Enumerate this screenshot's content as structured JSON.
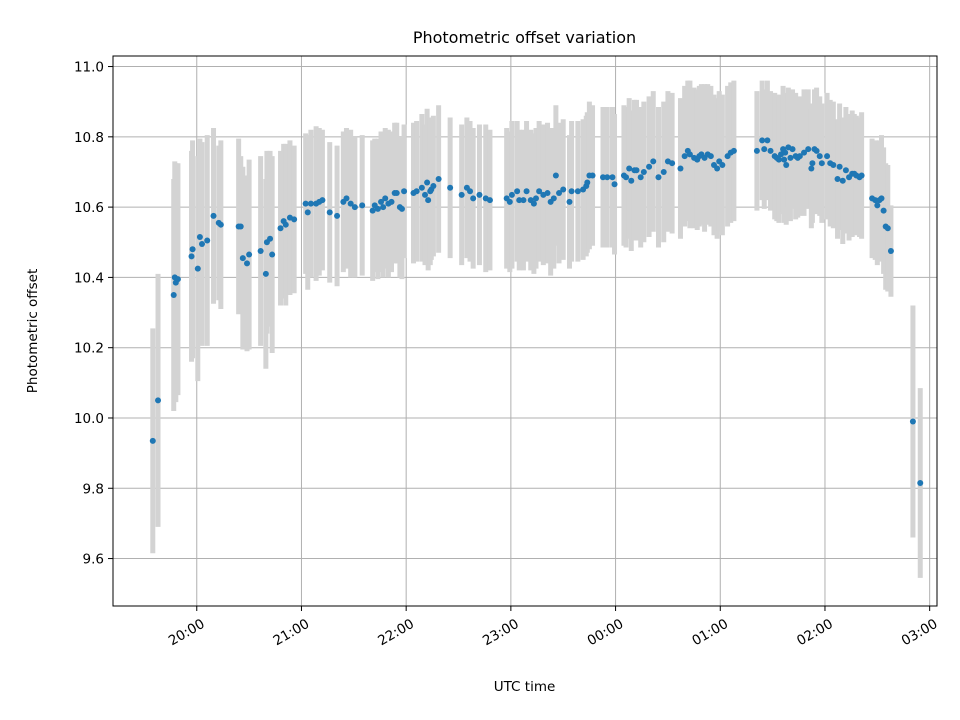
{
  "chart_data": {
    "type": "scatter",
    "title": "Photometric offset variation",
    "xlabel": "UTC time",
    "ylabel": "Photometric offset",
    "xlim": [
      19.2,
      27.07
    ],
    "ylim": [
      9.465,
      11.03
    ],
    "x_ticks": [
      {
        "value": 20,
        "label": "20:00"
      },
      {
        "value": 21,
        "label": "21:00"
      },
      {
        "value": 22,
        "label": "22:00"
      },
      {
        "value": 23,
        "label": "23:00"
      },
      {
        "value": 24,
        "label": "00:00"
      },
      {
        "value": 25,
        "label": "01:00"
      },
      {
        "value": 26,
        "label": "02:00"
      },
      {
        "value": 27,
        "label": "03:00"
      }
    ],
    "y_ticks": [
      {
        "value": 9.6,
        "label": "9.6"
      },
      {
        "value": 9.8,
        "label": "9.8"
      },
      {
        "value": 10.0,
        "label": "10.0"
      },
      {
        "value": 10.2,
        "label": "10.2"
      },
      {
        "value": 10.4,
        "label": "10.4"
      },
      {
        "value": 10.6,
        "label": "10.6"
      },
      {
        "value": 10.8,
        "label": "10.8"
      },
      {
        "value": 11.0,
        "label": "11.0"
      }
    ],
    "grid": true,
    "x_unit": "hours UTC (values past 24 are after midnight)",
    "point_color": "#1f77b4",
    "errorbar_color": "#d3d3d3",
    "series": [
      {
        "points": [
          [
            19.58,
            9.935,
            0.32
          ],
          [
            19.63,
            10.05,
            0.36
          ],
          [
            19.78,
            10.35,
            0.33
          ],
          [
            19.79,
            10.4,
            0.33
          ],
          [
            19.8,
            10.385,
            0.34
          ],
          [
            19.82,
            10.395,
            0.33
          ],
          [
            19.95,
            10.46,
            0.3
          ],
          [
            19.96,
            10.48,
            0.31
          ],
          [
            20.01,
            10.425,
            0.32
          ],
          [
            20.03,
            10.515,
            0.28
          ],
          [
            20.05,
            10.495,
            0.29
          ],
          [
            20.1,
            10.505,
            0.3
          ],
          [
            20.16,
            10.575,
            0.25
          ],
          [
            20.21,
            10.555,
            0.22
          ],
          [
            20.23,
            10.55,
            0.24
          ],
          [
            20.4,
            10.545,
            0.25
          ],
          [
            20.42,
            10.545,
            0.2
          ],
          [
            20.44,
            10.455,
            0.26
          ],
          [
            20.48,
            10.44,
            0.25
          ],
          [
            20.5,
            10.465,
            0.27
          ],
          [
            20.61,
            10.475,
            0.27
          ],
          [
            20.66,
            10.41,
            0.27
          ],
          [
            20.67,
            10.5,
            0.26
          ],
          [
            20.7,
            10.51,
            0.25
          ],
          [
            20.72,
            10.465,
            0.28
          ],
          [
            20.8,
            10.54,
            0.22
          ],
          [
            20.83,
            10.56,
            0.22
          ],
          [
            20.85,
            10.55,
            0.23
          ],
          [
            20.89,
            10.57,
            0.22
          ],
          [
            20.93,
            10.565,
            0.21
          ],
          [
            21.04,
            10.61,
            0.2
          ],
          [
            21.06,
            10.585,
            0.22
          ],
          [
            21.09,
            10.61,
            0.21
          ],
          [
            21.14,
            10.61,
            0.22
          ],
          [
            21.17,
            10.615,
            0.21
          ],
          [
            21.2,
            10.62,
            0.2
          ],
          [
            21.27,
            10.585,
            0.2
          ],
          [
            21.34,
            10.575,
            0.2
          ],
          [
            21.4,
            10.615,
            0.2
          ],
          [
            21.43,
            10.625,
            0.2
          ],
          [
            21.47,
            10.61,
            0.21
          ],
          [
            21.51,
            10.6,
            0.2
          ],
          [
            21.58,
            10.605,
            0.2
          ],
          [
            21.68,
            10.59,
            0.2
          ],
          [
            21.7,
            10.605,
            0.19
          ],
          [
            21.73,
            10.595,
            0.2
          ],
          [
            21.76,
            10.615,
            0.2
          ],
          [
            21.78,
            10.6,
            0.2
          ],
          [
            21.8,
            10.625,
            0.2
          ],
          [
            21.83,
            10.61,
            0.21
          ],
          [
            21.86,
            10.615,
            0.2
          ],
          [
            21.89,
            10.64,
            0.2
          ],
          [
            21.91,
            10.64,
            0.2
          ],
          [
            21.94,
            10.6,
            0.2
          ],
          [
            21.96,
            10.595,
            0.2
          ],
          [
            21.98,
            10.645,
            0.19
          ],
          [
            22.07,
            10.64,
            0.2
          ],
          [
            22.1,
            10.645,
            0.2
          ],
          [
            22.15,
            10.655,
            0.21
          ],
          [
            22.18,
            10.635,
            0.2
          ],
          [
            22.2,
            10.67,
            0.21
          ],
          [
            22.21,
            10.62,
            0.2
          ],
          [
            22.23,
            10.645,
            0.21
          ],
          [
            22.24,
            10.65,
            0.2
          ],
          [
            22.26,
            10.66,
            0.2
          ],
          [
            22.31,
            10.68,
            0.21
          ],
          [
            22.42,
            10.655,
            0.2
          ],
          [
            22.53,
            10.635,
            0.2
          ],
          [
            22.58,
            10.655,
            0.2
          ],
          [
            22.61,
            10.645,
            0.2
          ],
          [
            22.64,
            10.625,
            0.2
          ],
          [
            22.7,
            10.635,
            0.2
          ],
          [
            22.76,
            10.625,
            0.21
          ],
          [
            22.8,
            10.62,
            0.2
          ],
          [
            22.96,
            10.625,
            0.2
          ],
          [
            22.99,
            10.615,
            0.2
          ],
          [
            23.01,
            10.635,
            0.21
          ],
          [
            23.06,
            10.645,
            0.2
          ],
          [
            23.08,
            10.62,
            0.2
          ],
          [
            23.12,
            10.62,
            0.2
          ],
          [
            23.15,
            10.645,
            0.2
          ],
          [
            23.19,
            10.62,
            0.2
          ],
          [
            23.22,
            10.61,
            0.2
          ],
          [
            23.24,
            10.625,
            0.2
          ],
          [
            23.27,
            10.645,
            0.2
          ],
          [
            23.31,
            10.635,
            0.2
          ],
          [
            23.35,
            10.64,
            0.2
          ],
          [
            23.38,
            10.615,
            0.21
          ],
          [
            23.41,
            10.625,
            0.2
          ],
          [
            23.43,
            10.69,
            0.2
          ],
          [
            23.46,
            10.64,
            0.2
          ],
          [
            23.5,
            10.65,
            0.2
          ],
          [
            23.56,
            10.615,
            0.19
          ],
          [
            23.58,
            10.645,
            0.2
          ],
          [
            23.64,
            10.645,
            0.2
          ],
          [
            23.69,
            10.65,
            0.2
          ],
          [
            23.72,
            10.66,
            0.2
          ],
          [
            23.73,
            10.67,
            0.2
          ],
          [
            23.75,
            10.69,
            0.21
          ],
          [
            23.78,
            10.69,
            0.2
          ],
          [
            23.88,
            10.685,
            0.2
          ],
          [
            23.92,
            10.685,
            0.2
          ],
          [
            23.97,
            10.685,
            0.2
          ],
          [
            23.99,
            10.665,
            0.2
          ],
          [
            24.08,
            10.69,
            0.2
          ],
          [
            24.1,
            10.685,
            0.2
          ],
          [
            24.13,
            10.71,
            0.2
          ],
          [
            24.15,
            10.675,
            0.2
          ],
          [
            24.18,
            10.705,
            0.2
          ],
          [
            24.2,
            10.705,
            0.2
          ],
          [
            24.24,
            10.685,
            0.2
          ],
          [
            24.27,
            10.7,
            0.2
          ],
          [
            24.32,
            10.715,
            0.2
          ],
          [
            24.36,
            10.73,
            0.2
          ],
          [
            24.41,
            10.685,
            0.2
          ],
          [
            24.46,
            10.7,
            0.2
          ],
          [
            24.5,
            10.73,
            0.2
          ],
          [
            24.54,
            10.725,
            0.2
          ],
          [
            24.62,
            10.71,
            0.2
          ],
          [
            24.66,
            10.745,
            0.2
          ],
          [
            24.69,
            10.76,
            0.2
          ],
          [
            24.71,
            10.75,
            0.21
          ],
          [
            24.75,
            10.74,
            0.2
          ],
          [
            24.78,
            10.735,
            0.2
          ],
          [
            24.8,
            10.745,
            0.2
          ],
          [
            24.82,
            10.75,
            0.2
          ],
          [
            24.85,
            10.74,
            0.21
          ],
          [
            24.88,
            10.75,
            0.2
          ],
          [
            24.91,
            10.745,
            0.2
          ],
          [
            24.94,
            10.72,
            0.2
          ],
          [
            24.97,
            10.71,
            0.2
          ],
          [
            24.99,
            10.73,
            0.2
          ],
          [
            25.02,
            10.72,
            0.2
          ],
          [
            25.07,
            10.745,
            0.2
          ],
          [
            25.1,
            10.755,
            0.2
          ],
          [
            25.13,
            10.76,
            0.2
          ],
          [
            25.35,
            10.76,
            0.17
          ],
          [
            25.4,
            10.79,
            0.17
          ],
          [
            25.42,
            10.765,
            0.17
          ],
          [
            25.45,
            10.79,
            0.17
          ],
          [
            25.48,
            10.76,
            0.17
          ],
          [
            25.52,
            10.745,
            0.18
          ],
          [
            25.54,
            10.74,
            0.18
          ],
          [
            25.56,
            10.735,
            0.18
          ],
          [
            25.58,
            10.75,
            0.17
          ],
          [
            25.6,
            10.765,
            0.18
          ],
          [
            25.61,
            10.735,
            0.18
          ],
          [
            25.62,
            10.755,
            0.17
          ],
          [
            25.63,
            10.72,
            0.17
          ],
          [
            25.65,
            10.77,
            0.17
          ],
          [
            25.67,
            10.74,
            0.18
          ],
          [
            25.69,
            10.765,
            0.17
          ],
          [
            25.72,
            10.745,
            0.18
          ],
          [
            25.74,
            10.74,
            0.17
          ],
          [
            25.76,
            10.745,
            0.17
          ],
          [
            25.8,
            10.755,
            0.18
          ],
          [
            25.84,
            10.765,
            0.17
          ],
          [
            25.87,
            10.71,
            0.17
          ],
          [
            25.88,
            10.725,
            0.17
          ],
          [
            25.9,
            10.765,
            0.17
          ],
          [
            25.92,
            10.76,
            0.18
          ],
          [
            25.95,
            10.745,
            0.17
          ],
          [
            25.97,
            10.725,
            0.17
          ],
          [
            26.02,
            10.745,
            0.18
          ],
          [
            26.05,
            10.725,
            0.18
          ],
          [
            26.08,
            10.72,
            0.18
          ],
          [
            26.12,
            10.68,
            0.17
          ],
          [
            26.14,
            10.715,
            0.18
          ],
          [
            26.17,
            10.675,
            0.18
          ],
          [
            26.2,
            10.705,
            0.18
          ],
          [
            26.23,
            10.685,
            0.18
          ],
          [
            26.26,
            10.695,
            0.18
          ],
          [
            26.28,
            10.695,
            0.17
          ],
          [
            26.3,
            10.69,
            0.17
          ],
          [
            26.33,
            10.685,
            0.17
          ],
          [
            26.35,
            10.69,
            0.18
          ],
          [
            26.45,
            10.625,
            0.17
          ],
          [
            26.48,
            10.62,
            0.17
          ],
          [
            26.5,
            10.605,
            0.17
          ],
          [
            26.52,
            10.62,
            0.17
          ],
          [
            26.54,
            10.625,
            0.18
          ],
          [
            26.56,
            10.59,
            0.18
          ],
          [
            26.58,
            10.545,
            0.18
          ],
          [
            26.6,
            10.54,
            0.18
          ],
          [
            26.63,
            10.475,
            0.13
          ],
          [
            26.84,
            9.99,
            0.33
          ],
          [
            26.91,
            9.815,
            0.27
          ]
        ]
      }
    ]
  }
}
